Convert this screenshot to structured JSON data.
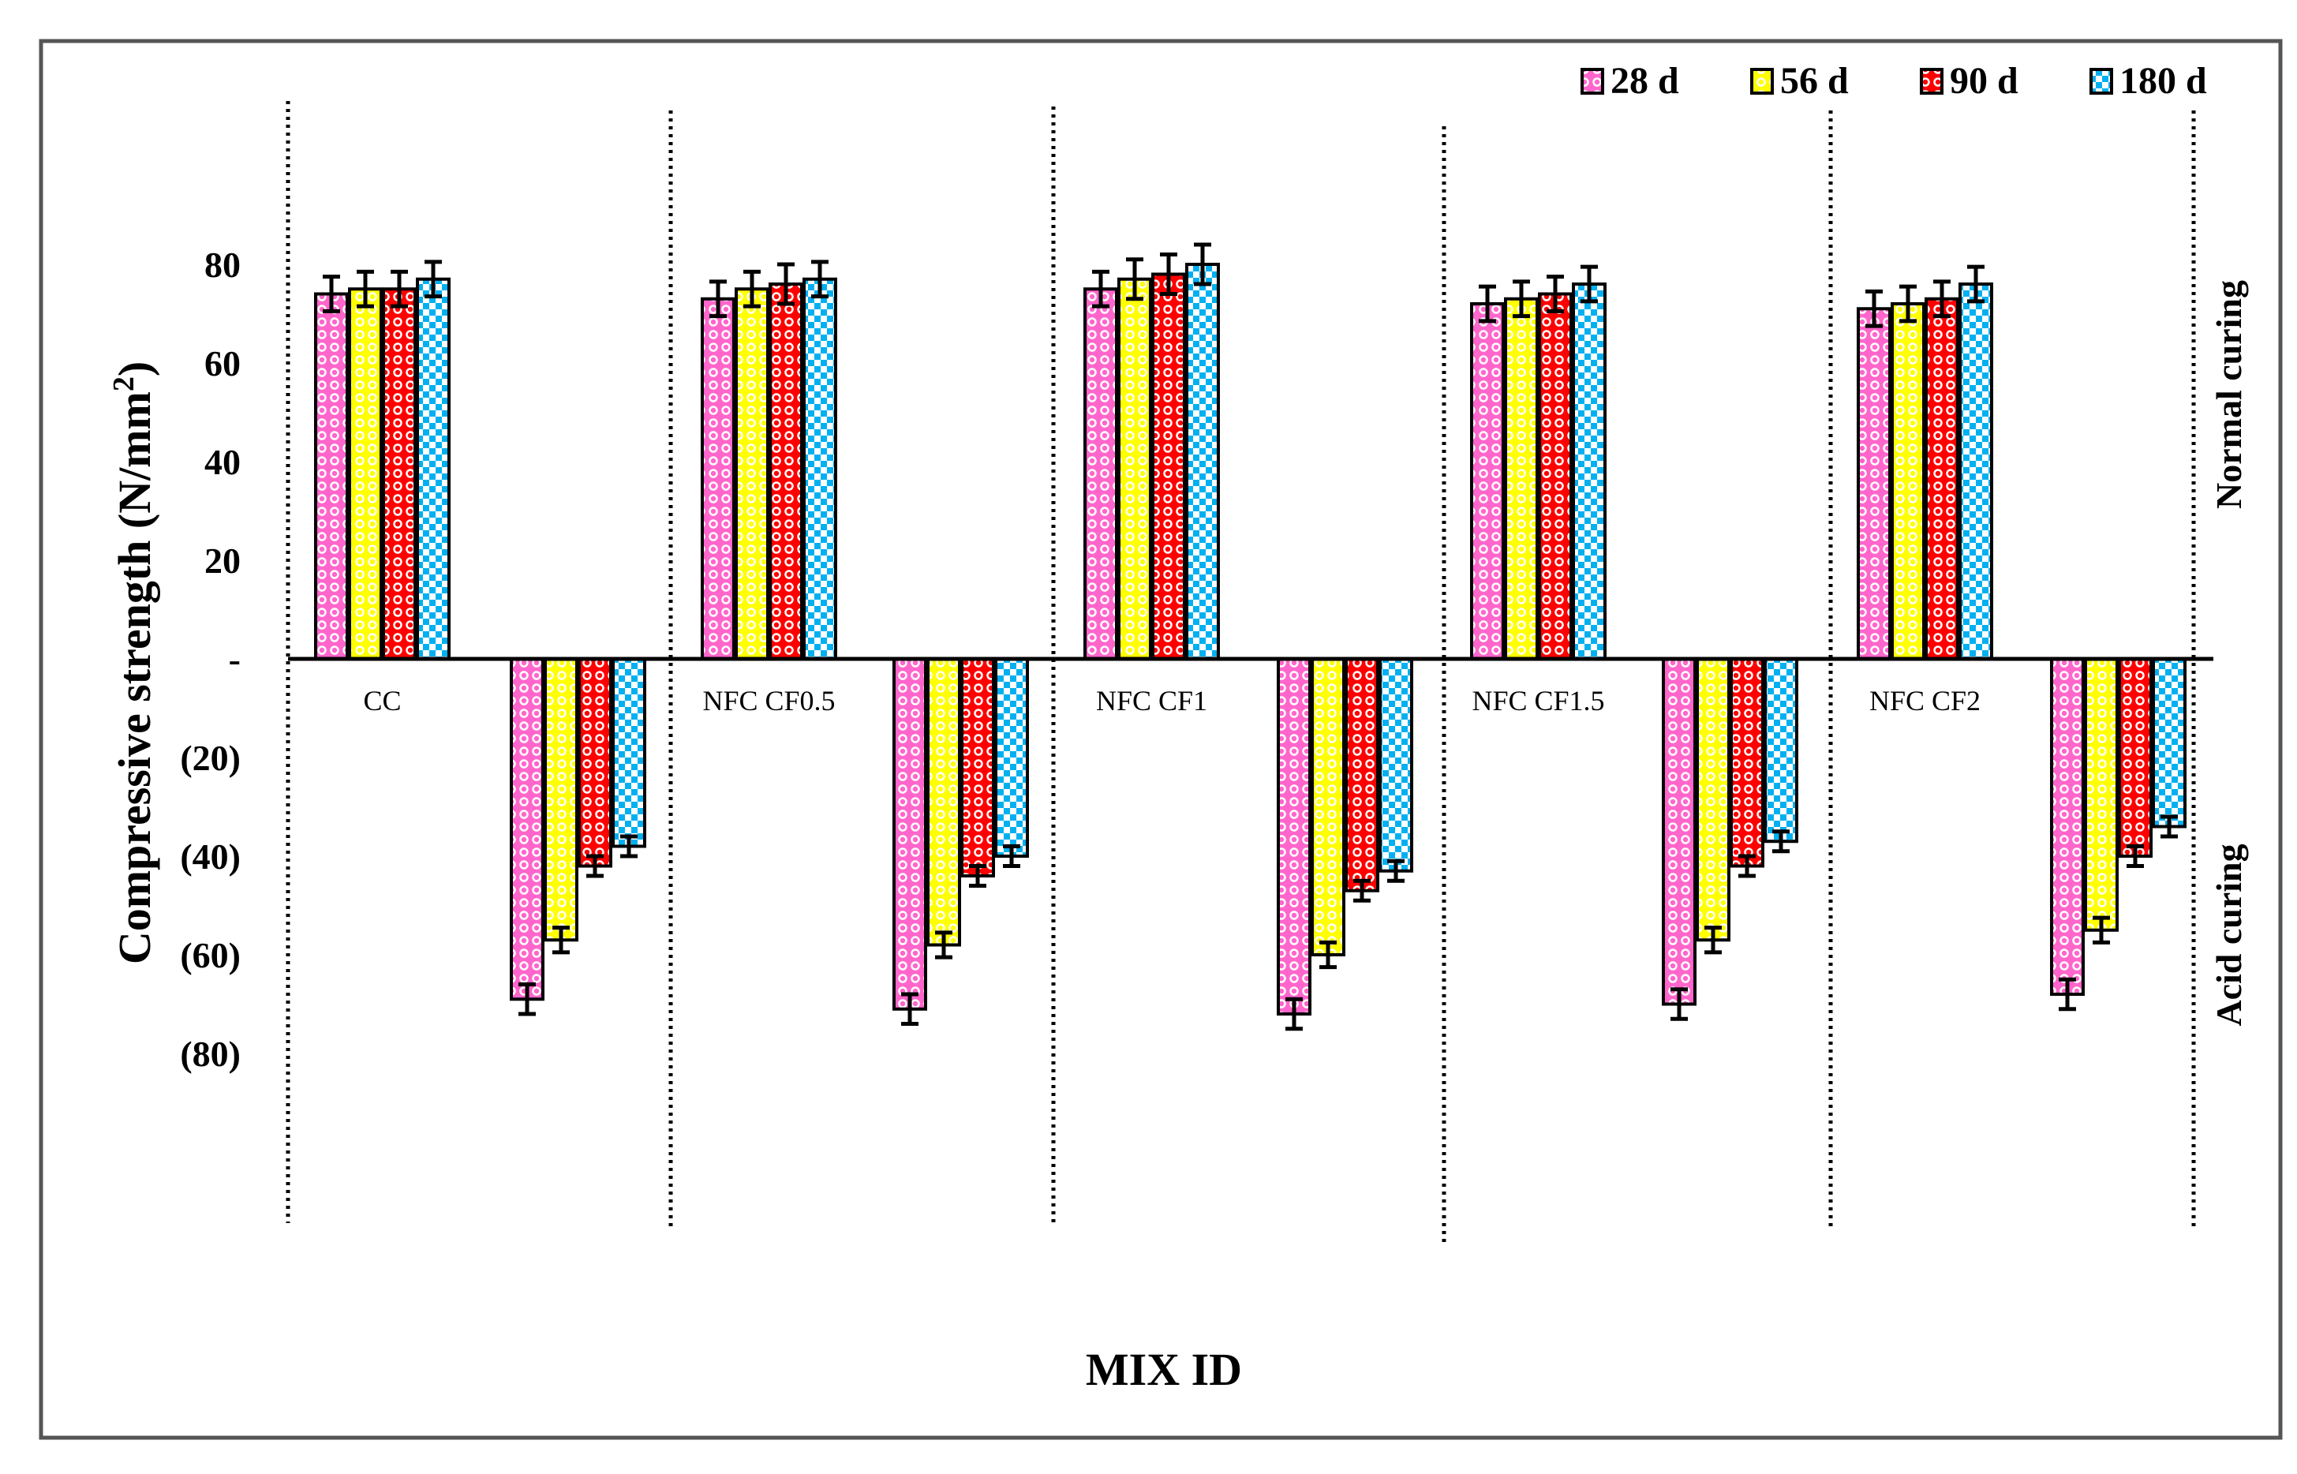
{
  "chart_data": {
    "type": "bar",
    "title": "",
    "xlabel": "MIX ID",
    "ylabel": "Compressive strength (N/mm²)",
    "ylim": [
      -90,
      90
    ],
    "yticks": [
      {
        "value": 80,
        "label": "80"
      },
      {
        "value": 60,
        "label": "60"
      },
      {
        "value": 40,
        "label": "40"
      },
      {
        "value": 20,
        "label": "20"
      },
      {
        "value": 0,
        "label": "-"
      },
      {
        "value": -20,
        "label": "(20)"
      },
      {
        "value": -40,
        "label": "(40)"
      },
      {
        "value": -60,
        "label": "(60)"
      },
      {
        "value": -80,
        "label": "(80)"
      }
    ],
    "categories": [
      "CC",
      "NFC CF0.5",
      "NFC CF1",
      "NFC CF1.5",
      "NFC CF2"
    ],
    "side_labels": {
      "top": "Normal curing",
      "bottom": "Acid curing"
    },
    "legend_position": "top-right",
    "series": [
      {
        "name": "28 d",
        "color": "#ff66cc",
        "normal": [
          74,
          73,
          75,
          72,
          71
        ],
        "acid": [
          -69,
          -71,
          -72,
          -70,
          -68
        ],
        "normal_err": [
          3.5,
          3.5,
          3.5,
          3.5,
          3.5
        ],
        "acid_err": [
          3,
          3,
          3,
          3,
          3
        ]
      },
      {
        "name": "56 d",
        "color": "#ffff00",
        "normal": [
          75,
          75,
          77,
          73,
          72
        ],
        "acid": [
          -57,
          -58,
          -60,
          -57,
          -55
        ],
        "normal_err": [
          3.5,
          3.5,
          4,
          3.5,
          3.5
        ],
        "acid_err": [
          2.5,
          2.5,
          2.5,
          2.5,
          2.5
        ]
      },
      {
        "name": "90 d",
        "color": "#ff0000",
        "normal": [
          75,
          76,
          78,
          74,
          73
        ],
        "acid": [
          -42,
          -44,
          -47,
          -42,
          -40
        ],
        "normal_err": [
          3.5,
          4,
          4,
          3.5,
          3.5
        ],
        "acid_err": [
          2,
          2,
          2,
          2,
          2
        ]
      },
      {
        "name": "180 d",
        "color": "#00b0f0",
        "normal": [
          77,
          77,
          80,
          76,
          76
        ],
        "acid": [
          -38,
          -40,
          -43,
          -37,
          -34
        ],
        "normal_err": [
          3.5,
          3.5,
          4,
          3.5,
          3.5
        ],
        "acid_err": [
          2,
          2,
          2,
          2,
          2
        ]
      }
    ]
  }
}
